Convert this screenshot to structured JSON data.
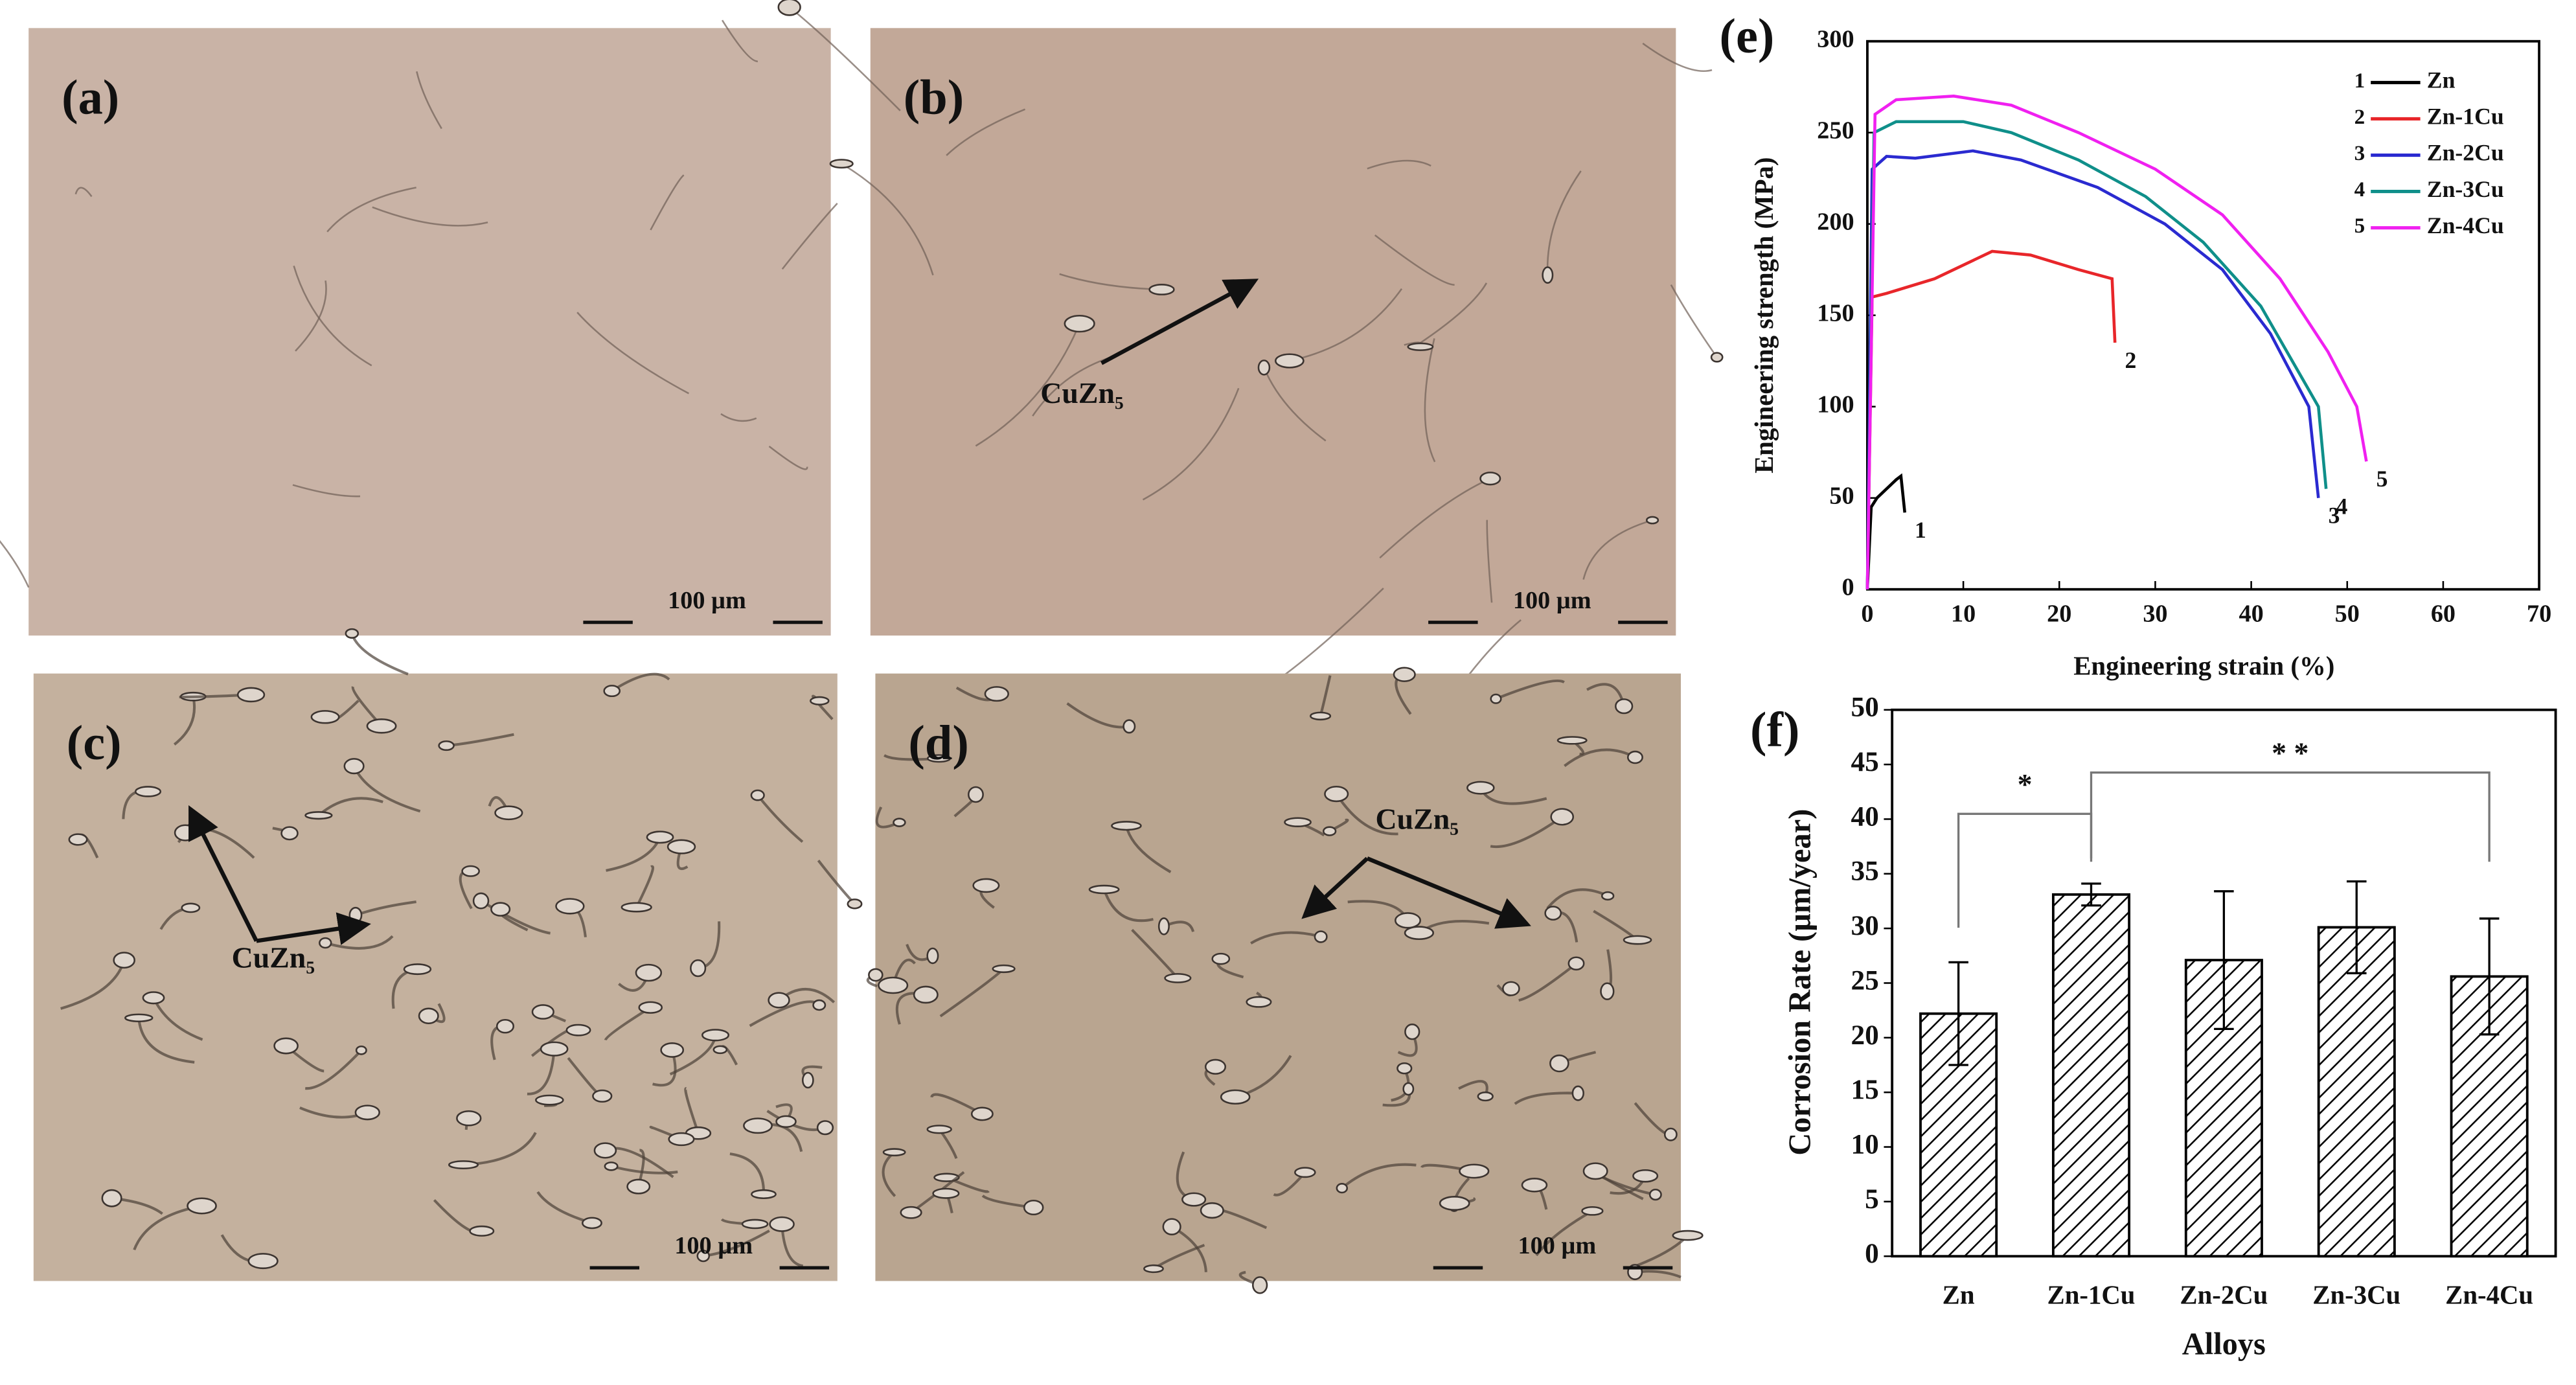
{
  "panels": [
    {
      "label": "(a)",
      "scale_bar": "100 µm"
    },
    {
      "label": "(b)",
      "scale_bar": "100 µm",
      "annotation": "CuZn₅"
    },
    {
      "label": "(c)",
      "scale_bar": "100 µm",
      "annotation": "CuZn₅"
    },
    {
      "label": "(d)",
      "scale_bar": "100 µm",
      "annotation": "CuZn₅"
    }
  ],
  "chart_data": [
    {
      "type": "line",
      "title": "(e)",
      "x_label": "Engineering strain (%)",
      "y_label": "Engineering strength (MPa)",
      "xlim": [
        0,
        70
      ],
      "xticks": [
        0,
        10,
        20,
        30,
        40,
        50,
        60,
        70
      ],
      "ylim": [
        0,
        300
      ],
      "yticks": [
        0,
        50,
        100,
        150,
        200,
        250,
        300
      ],
      "legend": "upper right",
      "series": [
        {
          "name": "Zn",
          "label": "1",
          "color": "#000000",
          "x": [
            0,
            0.4,
            1,
            2,
            3,
            3.5,
            3.9
          ],
          "values": [
            0,
            45,
            50,
            55,
            60,
            62,
            42
          ]
        },
        {
          "name": "Zn-1Cu",
          "label": "2",
          "color": "#e8262a",
          "x": [
            0,
            0.5,
            2,
            7,
            13,
            17,
            22,
            25.5,
            25.8
          ],
          "values": [
            0,
            160,
            162,
            170,
            185,
            183,
            175,
            170,
            135
          ]
        },
        {
          "name": "Zn-2Cu",
          "label": "3",
          "color": "#2a2ad0",
          "x": [
            0,
            0.5,
            2,
            5,
            11,
            16,
            24,
            31,
            37,
            42,
            46,
            47
          ],
          "values": [
            0,
            230,
            237,
            236,
            240,
            235,
            220,
            200,
            175,
            140,
            100,
            50
          ]
        },
        {
          "name": "Zn-3Cu",
          "label": "4",
          "color": "#0f8f8a",
          "x": [
            0,
            0.7,
            3,
            10,
            15,
            22,
            29,
            35,
            41,
            47,
            47.8
          ],
          "values": [
            0,
            250,
            256,
            256,
            250,
            235,
            215,
            190,
            155,
            100,
            55
          ]
        },
        {
          "name": "Zn-4Cu",
          "label": "5",
          "color": "#f020f0",
          "x": [
            0,
            0.8,
            3,
            9,
            15,
            22,
            30,
            37,
            43,
            48,
            51,
            52
          ],
          "values": [
            0,
            260,
            268,
            270,
            265,
            250,
            230,
            205,
            170,
            130,
            100,
            70
          ]
        }
      ]
    },
    {
      "type": "bar",
      "title": "(f)",
      "x_label": "Alloys",
      "y_label": "Corrosion Rate (µm/year)",
      "categories": [
        "Zn",
        "Zn-1Cu",
        "Zn-2Cu",
        "Zn-3Cu",
        "Zn-4Cu"
      ],
      "values": [
        22.2,
        33.1,
        27.1,
        30.1,
        25.6
      ],
      "errors": [
        4.7,
        1.0,
        6.3,
        4.2,
        5.3
      ],
      "color": "#000000",
      "hatch": "diagonal",
      "ylim": [
        0,
        50
      ],
      "yticks": [
        0,
        5,
        10,
        15,
        20,
        25,
        30,
        35,
        40,
        45,
        50
      ],
      "annotations": [
        "*",
        "* *"
      ]
    }
  ]
}
